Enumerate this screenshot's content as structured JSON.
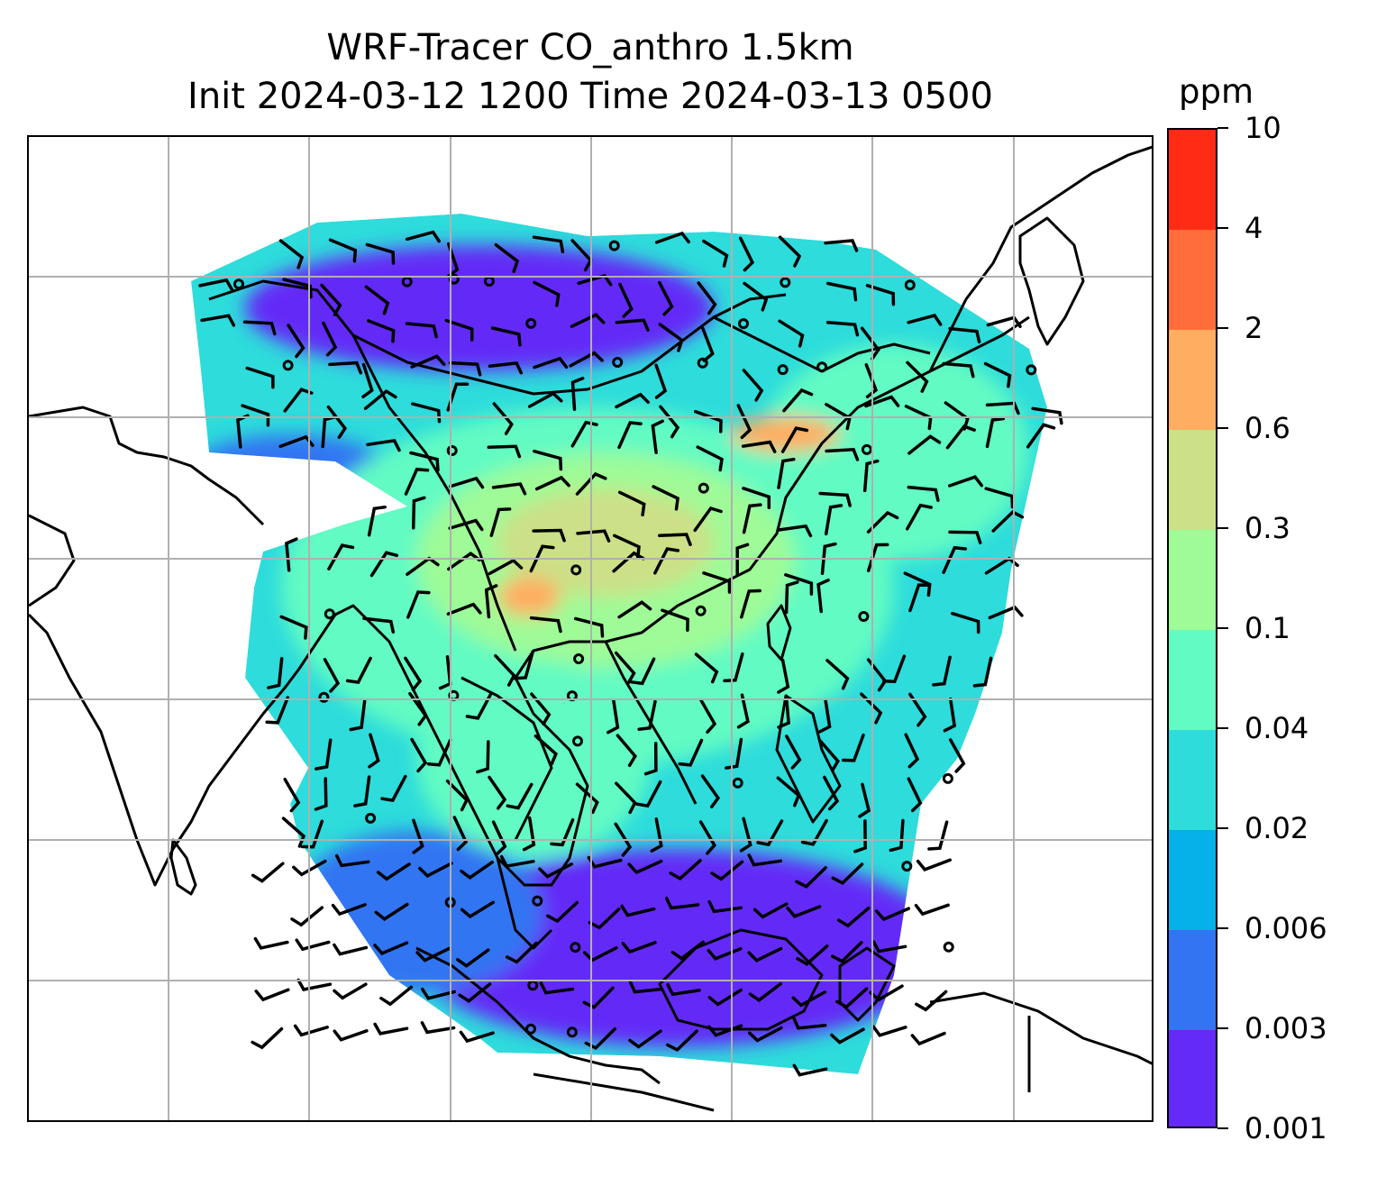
{
  "title": {
    "line1": "WRF-Tracer CO_anthro 1.5km",
    "line2": "Init 2024-03-12 1200 Time 2024-03-13 0500"
  },
  "colorbar": {
    "unit": "ppm",
    "levels": [
      "10",
      "4",
      "2",
      "0.6",
      "0.3",
      "0.1",
      "0.04",
      "0.02",
      "0.006",
      "0.003",
      "0.001"
    ],
    "colors": [
      "#ff2b14",
      "#ff6e3a",
      "#ffad60",
      "#cce087",
      "#9efb97",
      "#62fbc3",
      "#2ddcdb",
      "#06b0e8",
      "#3374f2",
      "#642af7"
    ]
  },
  "map": {
    "gridlines": true,
    "coastline_color": "#000000",
    "grid_color": "#b0b0b0",
    "field": {
      "variable": "CO_anthro",
      "dominant_range_ppm": [
        0.003,
        0.3
      ],
      "max_region_ppm": [
        0.6,
        2
      ]
    }
  }
}
